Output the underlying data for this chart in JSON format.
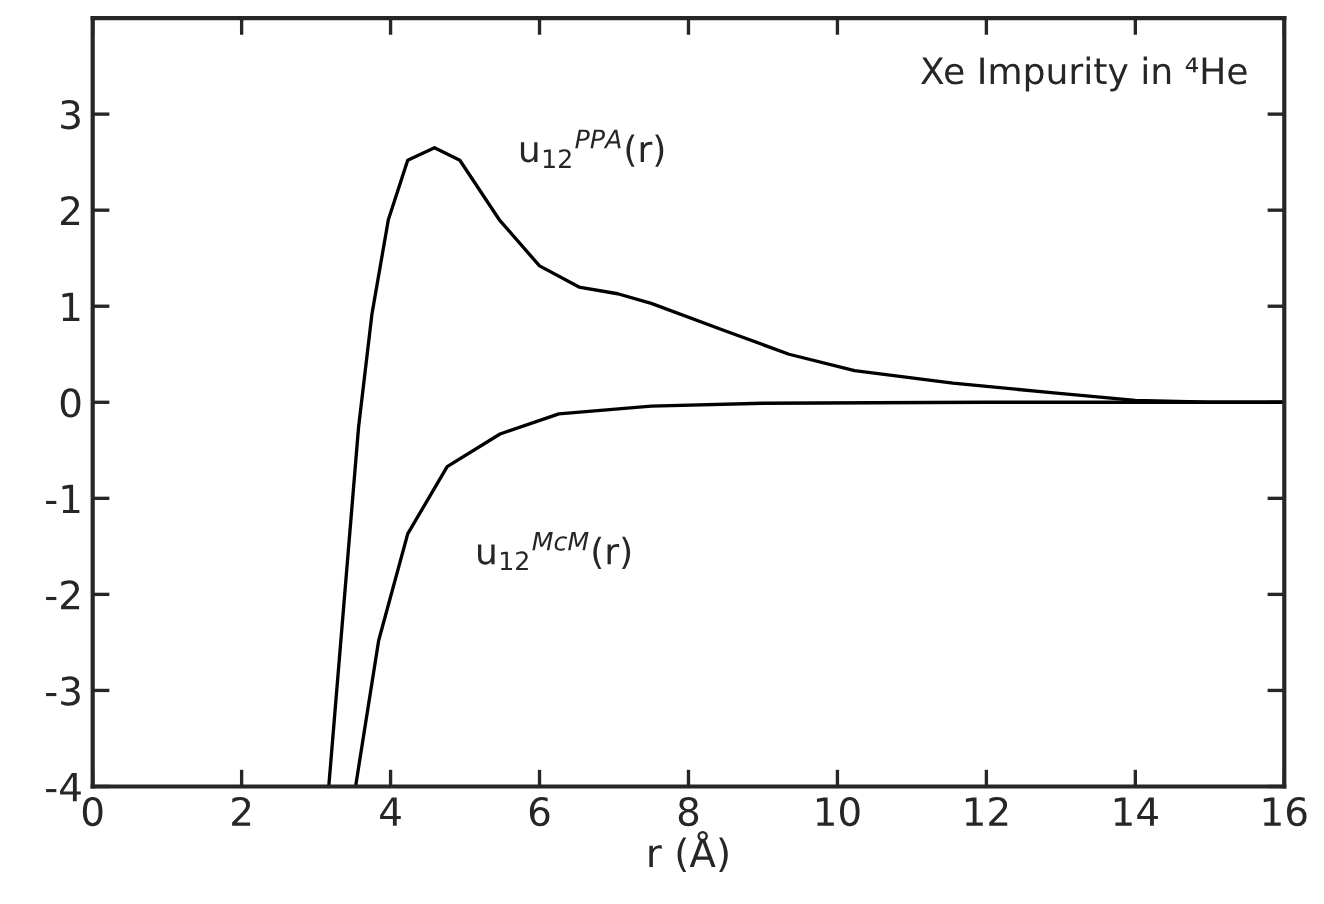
{
  "chart_data": {
    "type": "line",
    "xlabel": "r (Å)",
    "xlim": [
      0,
      16
    ],
    "xticks": [
      0,
      2,
      4,
      6,
      8,
      10,
      12,
      14,
      16
    ],
    "ylim": [
      -4,
      4
    ],
    "yticks": [
      -4,
      -3,
      -2,
      -1,
      0,
      1,
      2,
      3
    ],
    "grid": false,
    "legend": false,
    "marker": "none",
    "line_style": "solid",
    "annotations": [
      "Xe Impurity in ⁴He"
    ],
    "series": [
      {
        "name": "u$_{12}$$^{PPA}$(r)",
        "color": "#000000",
        "x": [
          3.17,
          3.57,
          3.75,
          3.97,
          4.23,
          4.59,
          4.93,
          5.46,
          6.0,
          6.53,
          7.05,
          7.5,
          8.47,
          9.35,
          10.23,
          11.55,
          12.87,
          14.0,
          15.0,
          16.0
        ],
        "values": [
          -4,
          -0.26,
          0.92,
          1.9,
          2.52,
          2.65,
          2.52,
          1.9,
          1.42,
          1.2,
          1.13,
          1.03,
          0.75,
          0.5,
          0.33,
          0.2,
          0.1,
          0.02,
          0,
          0
        ]
      },
      {
        "name": "u$_{12}$$^{McM}$(r)",
        "color": "#000000",
        "x": [
          3.53,
          3.84,
          4.23,
          4.76,
          5.47,
          6.26,
          7.5,
          9.0,
          12.0,
          16.0
        ],
        "values": [
          -4,
          -2.48,
          -1.37,
          -0.67,
          -0.33,
          -0.12,
          -0.04,
          -0.01,
          0,
          0
        ]
      }
    ]
  }
}
